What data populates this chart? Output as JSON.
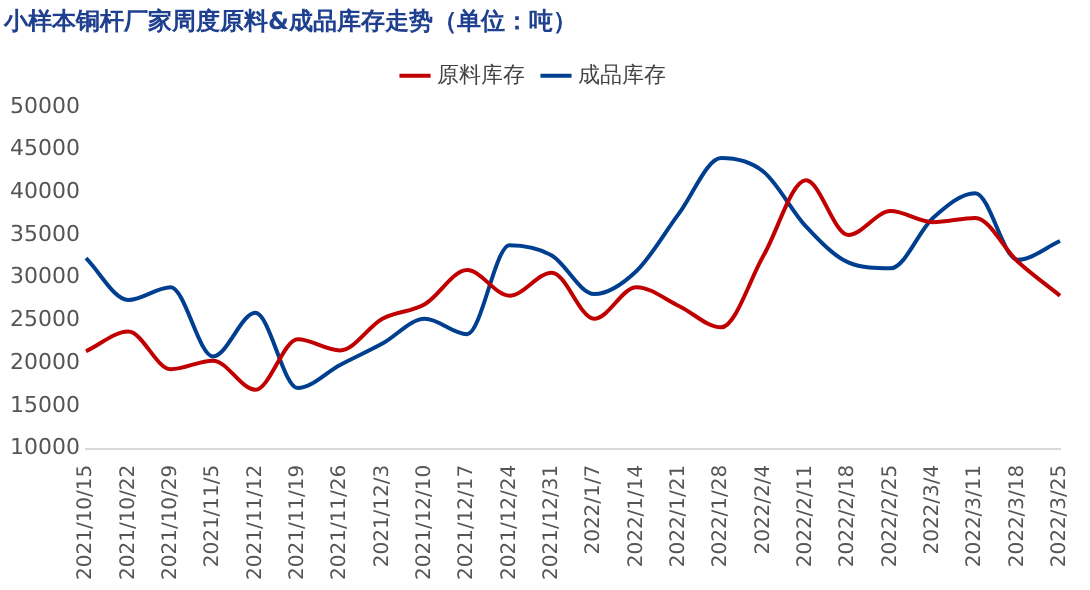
{
  "chart_data": {
    "type": "line",
    "title": "小样本铜杆厂家周度原料&成品库存走势（单位：吨）",
    "categories": [
      "2021/10/15",
      "2021/10/22",
      "2021/10/29",
      "2021/11/5",
      "2021/11/12",
      "2021/11/19",
      "2021/11/26",
      "2021/12/3",
      "2021/12/10",
      "2021/12/17",
      "2021/12/24",
      "2021/12/31",
      "2022/1/7",
      "2022/1/14",
      "2022/1/21",
      "2022/1/28",
      "2022/2/4",
      "2022/2/11",
      "2022/2/18",
      "2022/2/25",
      "2022/3/4",
      "2022/3/11",
      "2022/3/18",
      "2022/3/25"
    ],
    "series": [
      {
        "name": "原料库存",
        "color": "#c00000",
        "values": [
          21400,
          23700,
          19300,
          20300,
          16900,
          22800,
          21500,
          25200,
          26900,
          30900,
          27900,
          30600,
          25200,
          28900,
          26700,
          24200,
          32600,
          41400,
          35000,
          37800,
          36500,
          37000,
          31900,
          27900
        ]
      },
      {
        "name": "成品库存",
        "color": "#003f8f",
        "values": [
          32300,
          27400,
          28900,
          20800,
          25900,
          17100,
          19800,
          22300,
          25200,
          23400,
          33800,
          32600,
          28100,
          30800,
          37500,
          44000,
          42400,
          36000,
          31800,
          31100,
          37000,
          39900,
          32100,
          34300
        ]
      }
    ],
    "ylim": [
      10000,
      50000
    ],
    "yticks": [
      10000,
      15000,
      20000,
      25000,
      30000,
      35000,
      40000,
      45000,
      50000
    ],
    "grid": false,
    "legend": "top",
    "marker": "none",
    "line_style": "solid"
  }
}
